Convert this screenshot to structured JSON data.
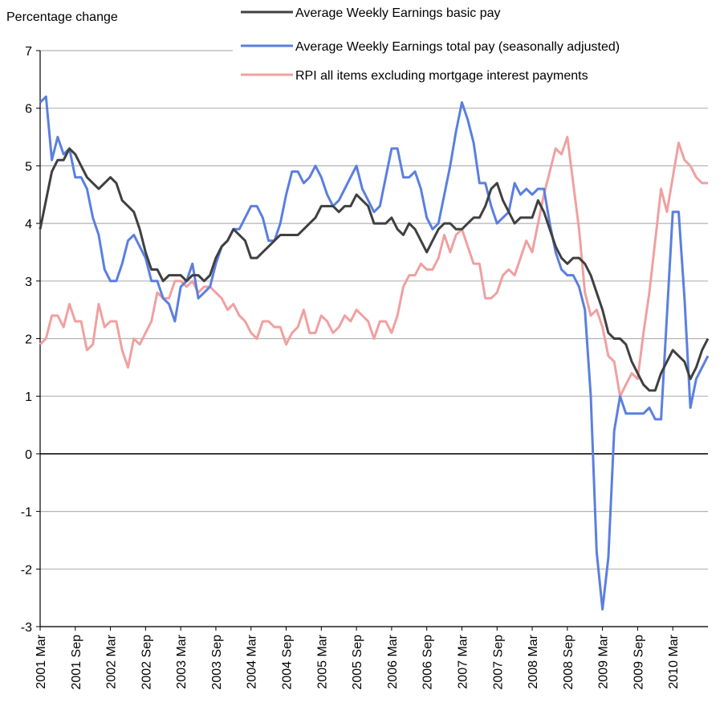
{
  "chart_data": {
    "type": "line",
    "y_axis_title": "Percentage change",
    "categories": [
      "2001 Mar",
      null,
      null,
      null,
      null,
      null,
      "2001 Sep",
      null,
      null,
      null,
      null,
      null,
      "2002 Mar",
      null,
      null,
      null,
      null,
      null,
      "2002 Sep",
      null,
      null,
      null,
      null,
      null,
      "2003 Mar",
      null,
      null,
      null,
      null,
      null,
      "2003 Sep",
      null,
      null,
      null,
      null,
      null,
      "2004 Mar",
      null,
      null,
      null,
      null,
      null,
      "2004 Sep",
      null,
      null,
      null,
      null,
      null,
      "2005 Mar",
      null,
      null,
      null,
      null,
      null,
      "2005 Sep",
      null,
      null,
      null,
      null,
      null,
      "2006 Mar",
      null,
      null,
      null,
      null,
      null,
      "2006 Sep",
      null,
      null,
      null,
      null,
      null,
      "2007 Mar",
      null,
      null,
      null,
      null,
      null,
      "2007 Sep",
      null,
      null,
      null,
      null,
      null,
      "2008 Mar",
      null,
      null,
      null,
      null,
      null,
      "2008 Sep",
      null,
      null,
      null,
      null,
      null,
      "2009 Mar",
      null,
      null,
      null,
      null,
      null,
      "2009 Sep",
      null,
      null,
      null,
      null,
      null,
      "2010 Mar",
      null,
      null,
      null,
      null,
      null,
      null
    ],
    "series": [
      {
        "name": "Average Weekly Earnings basic pay",
        "color": "#404040",
        "values": [
          3.9,
          4.4,
          4.9,
          5.1,
          5.1,
          5.3,
          5.2,
          5.0,
          4.8,
          4.7,
          4.6,
          4.7,
          4.8,
          4.7,
          4.4,
          4.3,
          4.2,
          3.9,
          3.5,
          3.2,
          3.2,
          3.0,
          3.1,
          3.1,
          3.1,
          3.0,
          3.1,
          3.1,
          3.0,
          3.1,
          3.4,
          3.6,
          3.7,
          3.9,
          3.8,
          3.7,
          3.4,
          3.4,
          3.5,
          3.6,
          3.7,
          3.8,
          3.8,
          3.8,
          3.8,
          3.9,
          4.0,
          4.1,
          4.3,
          4.3,
          4.3,
          4.2,
          4.3,
          4.3,
          4.5,
          4.4,
          4.3,
          4.0,
          4.0,
          4.0,
          4.1,
          3.9,
          3.8,
          4.0,
          3.9,
          3.7,
          3.5,
          3.7,
          3.9,
          4.0,
          4.0,
          3.9,
          3.9,
          4.0,
          4.1,
          4.1,
          4.3,
          4.6,
          4.7,
          4.4,
          4.2,
          4.0,
          4.1,
          4.1,
          4.1,
          4.4,
          4.2,
          3.9,
          3.6,
          3.4,
          3.3,
          3.4,
          3.4,
          3.3,
          3.1,
          2.8,
          2.5,
          2.1,
          2.0,
          2.0,
          1.9,
          1.6,
          1.4,
          1.2,
          1.1,
          1.1,
          1.4,
          1.6,
          1.8,
          1.7,
          1.6,
          1.3,
          1.5,
          1.8,
          2.0
        ]
      },
      {
        "name": "Average Weekly Earnings total pay (seasonally adjusted)",
        "color": "#5b7fe0",
        "values": [
          6.1,
          6.2,
          5.1,
          5.5,
          5.2,
          5.3,
          4.8,
          4.8,
          4.6,
          4.1,
          3.8,
          3.2,
          3.0,
          3.0,
          3.3,
          3.7,
          3.8,
          3.6,
          3.4,
          3.0,
          3.0,
          2.7,
          2.6,
          2.3,
          2.9,
          3.0,
          3.3,
          2.7,
          2.8,
          2.9,
          3.3,
          3.6,
          3.7,
          3.9,
          3.9,
          4.1,
          4.3,
          4.3,
          4.1,
          3.7,
          3.7,
          4.0,
          4.5,
          4.9,
          4.9,
          4.7,
          4.8,
          5.0,
          4.8,
          4.5,
          4.3,
          4.4,
          4.6,
          4.8,
          5.0,
          4.6,
          4.4,
          4.2,
          4.3,
          4.8,
          5.3,
          5.3,
          4.8,
          4.8,
          4.9,
          4.6,
          4.1,
          3.9,
          4.0,
          4.5,
          5.0,
          5.6,
          6.1,
          5.8,
          5.4,
          4.7,
          4.7,
          4.3,
          4.0,
          4.1,
          4.2,
          4.7,
          4.5,
          4.6,
          4.5,
          4.6,
          4.6,
          4.0,
          3.5,
          3.2,
          3.1,
          3.1,
          2.9,
          2.5,
          1.0,
          -1.7,
          -2.7,
          -1.8,
          0.4,
          1.0,
          0.7,
          0.7,
          0.7,
          0.7,
          0.8,
          0.6,
          0.6,
          2.4,
          4.2,
          4.2,
          2.7,
          0.8,
          1.3,
          1.5,
          1.7
        ]
      },
      {
        "name": "RPI all items excluding mortgage interest payments",
        "color": "#f0a0a0",
        "values": [
          1.9,
          2.0,
          2.4,
          2.4,
          2.2,
          2.6,
          2.3,
          2.3,
          1.8,
          1.9,
          2.6,
          2.2,
          2.3,
          2.3,
          1.8,
          1.5,
          2.0,
          1.9,
          2.1,
          2.3,
          2.8,
          2.7,
          2.7,
          3.0,
          3.0,
          2.9,
          3.0,
          2.8,
          2.9,
          2.9,
          2.8,
          2.7,
          2.5,
          2.6,
          2.4,
          2.3,
          2.1,
          2.0,
          2.3,
          2.3,
          2.2,
          2.2,
          1.9,
          2.1,
          2.2,
          2.5,
          2.1,
          2.1,
          2.4,
          2.3,
          2.1,
          2.2,
          2.4,
          2.3,
          2.5,
          2.4,
          2.3,
          2.0,
          2.3,
          2.3,
          2.1,
          2.4,
          2.9,
          3.1,
          3.1,
          3.3,
          3.2,
          3.2,
          3.4,
          3.8,
          3.5,
          3.8,
          3.9,
          3.6,
          3.3,
          3.3,
          2.7,
          2.7,
          2.8,
          3.1,
          3.2,
          3.1,
          3.4,
          3.7,
          3.5,
          4.0,
          4.5,
          4.9,
          5.3,
          5.2,
          5.5,
          4.7,
          3.9,
          2.8,
          2.4,
          2.5,
          2.2,
          1.7,
          1.6,
          1.0,
          1.2,
          1.4,
          1.3,
          2.1,
          2.8,
          3.7,
          4.6,
          4.2,
          4.8,
          5.4,
          5.1,
          5.0,
          4.8,
          4.7,
          4.7
        ]
      }
    ],
    "ylim": [
      -3,
      7
    ],
    "yticks": [
      -3,
      -2,
      -1,
      0,
      1,
      2,
      3,
      4,
      5,
      6,
      7
    ],
    "grid": true,
    "legend": "top"
  }
}
